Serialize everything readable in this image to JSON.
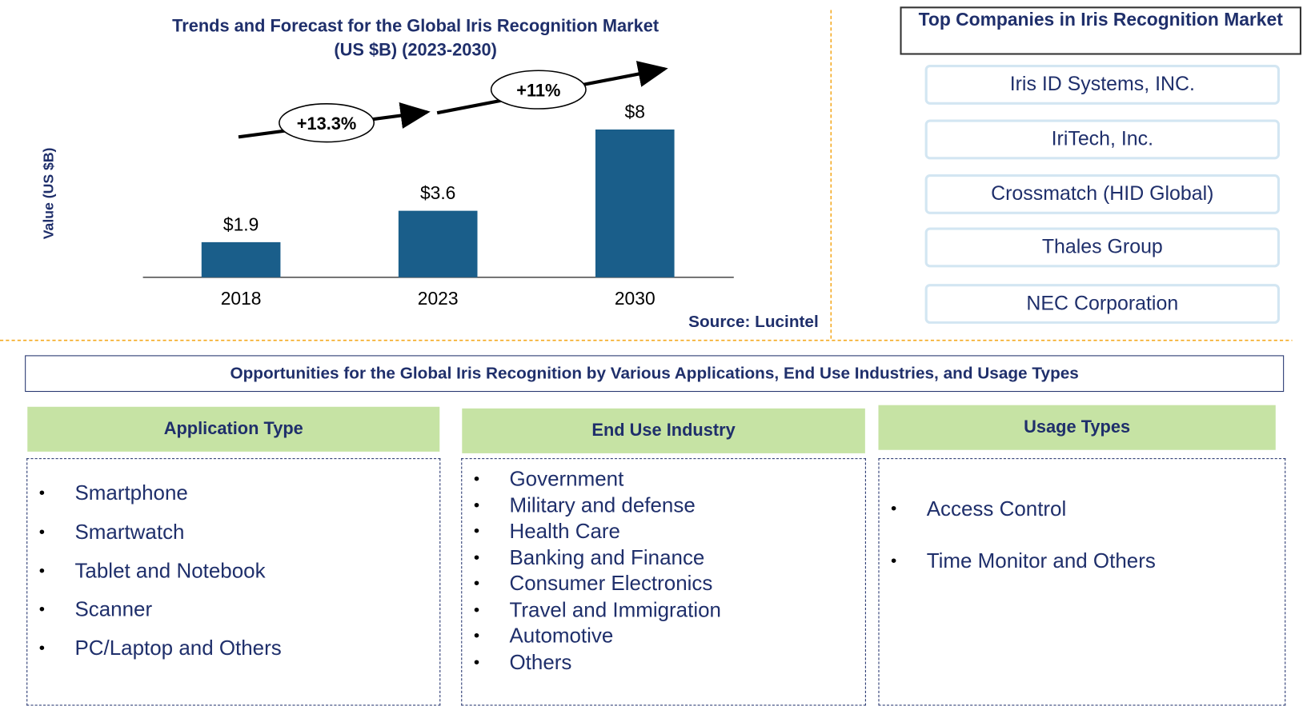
{
  "chart_data": {
    "type": "bar",
    "title": "Trends and Forecast for the Global Iris Recognition Market",
    "subtitle": "(US $B) (2023-2030)",
    "y_label": "Value (US $B)",
    "categories": [
      "2018",
      "2023",
      "2030"
    ],
    "values": [
      1.9,
      3.6,
      8
    ],
    "value_labels": [
      "$1.9",
      "$3.6",
      "$8"
    ],
    "color": "#1a5e8a",
    "annotations": [
      "+13.3%",
      "+11%"
    ],
    "source": "Source: Lucintel"
  },
  "companies": {
    "title": "Top Companies in Iris Recognition Market",
    "items": [
      "Iris ID Systems, INC.",
      "IriTech, Inc.",
      "Crossmatch (HID Global)",
      "Thales Group",
      "NEC Corporation"
    ]
  },
  "opportunities": {
    "title": "Opportunities for the Global Iris Recognition  by Various Applications,  End Use Industries, and Usage Types",
    "columns": [
      {
        "header": "Application Type",
        "items": [
          "Smartphone",
          "Smartwatch",
          "Tablet and Notebook",
          "Scanner",
          "PC/Laptop and Others"
        ]
      },
      {
        "header": "End Use Industry",
        "items": [
          "Government",
          "Military and defense",
          "Health Care",
          "Banking and Finance",
          "Consumer Electronics",
          "Travel and Immigration",
          "Automotive",
          "Others"
        ]
      },
      {
        "header": "Usage Types",
        "items": [
          "Access Control",
          "Time Monitor and Others"
        ]
      }
    ]
  }
}
